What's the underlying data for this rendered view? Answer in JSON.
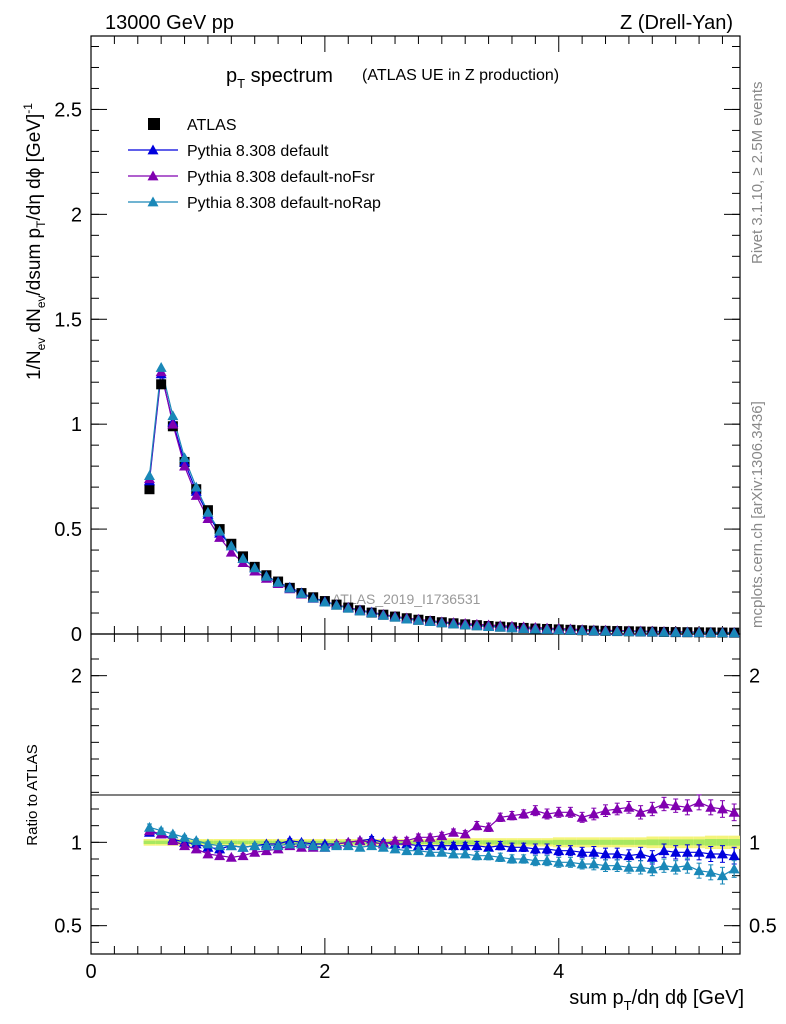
{
  "header": {
    "left": "13000 GeV pp",
    "right": "Z (Drell-Yan)"
  },
  "title": {
    "main": "p",
    "main_sub": "T",
    "main_rest": " spectrum",
    "note": "(ATLAS UE in Z production)"
  },
  "side_labels": {
    "rivet": "Rivet 3.1.10, ≥ 2.5M events",
    "mcplots": "mcplots.cern.ch [arXiv:1306.3436]"
  },
  "watermark": "ATLAS_2019_I1736531",
  "colors": {
    "atlas": "#000000",
    "default": "#0000dd",
    "noFsr": "#8000b0",
    "noRap": "#1a88b8",
    "band_outer": "#f4f47a",
    "band_inner": "#a8e860"
  },
  "chart_data": [
    {
      "type": "scatter",
      "panel": "main",
      "ylabel": "1/N_ev dN_ev/dsum p_T/dη dφ [GeV]^-1",
      "xlim": [
        0,
        5.55
      ],
      "ylim": [
        0,
        2.85
      ],
      "y_ticks": [
        "0",
        "0.5",
        "1",
        "1.5",
        "2",
        "2.5"
      ],
      "legend": {
        "placement": "top-left",
        "entries": [
          "ATLAS",
          "Pythia 8.308 default",
          "Pythia 8.308 default-noFsr",
          "Pythia 8.308 default-noRap"
        ]
      },
      "x": [
        0.5,
        0.6,
        0.7,
        0.8,
        0.9,
        1.0,
        1.1,
        1.2,
        1.3,
        1.4,
        1.5,
        1.6,
        1.7,
        1.8,
        1.9,
        2.0,
        2.1,
        2.2,
        2.3,
        2.4,
        2.5,
        2.6,
        2.7,
        2.8,
        2.9,
        3.0,
        3.1,
        3.2,
        3.3,
        3.4,
        3.5,
        3.6,
        3.7,
        3.8,
        3.9,
        4.0,
        4.1,
        4.2,
        4.3,
        4.4,
        4.5,
        4.6,
        4.7,
        4.8,
        4.9,
        5.0,
        5.1,
        5.2,
        5.3,
        5.4,
        5.5
      ],
      "series": [
        {
          "name": "ATLAS",
          "marker": "square",
          "values": [
            0.69,
            1.19,
            0.99,
            0.82,
            0.69,
            0.59,
            0.5,
            0.43,
            0.37,
            0.32,
            0.28,
            0.25,
            0.22,
            0.195,
            0.175,
            0.157,
            0.14,
            0.126,
            0.113,
            0.102,
            0.092,
            0.083,
            0.075,
            0.068,
            0.062,
            0.056,
            0.051,
            0.046,
            0.042,
            0.038,
            0.035,
            0.032,
            0.029,
            0.026,
            0.024,
            0.022,
            0.02,
            0.018,
            0.016,
            0.015,
            0.014,
            0.013,
            0.012,
            0.011,
            0.01,
            0.009,
            0.0085,
            0.008,
            0.0075,
            0.007,
            0.0065
          ]
        },
        {
          "name": "Pythia 8.308 default",
          "marker": "triangle",
          "values": [
            0.73,
            1.24,
            1.01,
            0.82,
            0.68,
            0.57,
            0.48,
            0.42,
            0.36,
            0.315,
            0.277,
            0.247,
            0.222,
            0.196,
            0.173,
            0.155,
            0.139,
            0.126,
            0.114,
            0.104,
            0.092,
            0.083,
            0.074,
            0.067,
            0.061,
            0.055,
            0.05,
            0.045,
            0.041,
            0.037,
            0.034,
            0.031,
            0.028,
            0.025,
            0.023,
            0.021,
            0.019,
            0.017,
            0.015,
            0.014,
            0.013,
            0.012,
            0.011,
            0.01,
            0.0095,
            0.0085,
            0.008,
            0.0075,
            0.007,
            0.0065,
            0.006
          ]
        },
        {
          "name": "Pythia 8.308 default-noFsr",
          "marker": "triangle",
          "values": [
            0.74,
            1.25,
            1.0,
            0.8,
            0.66,
            0.55,
            0.46,
            0.39,
            0.34,
            0.3,
            0.265,
            0.24,
            0.215,
            0.19,
            0.17,
            0.153,
            0.138,
            0.126,
            0.114,
            0.102,
            0.093,
            0.084,
            0.076,
            0.07,
            0.064,
            0.058,
            0.054,
            0.05,
            0.046,
            0.043,
            0.04,
            0.037,
            0.034,
            0.031,
            0.028,
            0.026,
            0.024,
            0.021,
            0.019,
            0.018,
            0.016,
            0.015,
            0.014,
            0.013,
            0.012,
            0.011,
            0.01,
            0.0093,
            0.0085,
            0.008,
            0.0075
          ]
        },
        {
          "name": "Pythia 8.308 default-noRap",
          "marker": "triangle",
          "values": [
            0.755,
            1.27,
            1.04,
            0.84,
            0.7,
            0.58,
            0.49,
            0.42,
            0.36,
            0.315,
            0.275,
            0.246,
            0.218,
            0.193,
            0.171,
            0.152,
            0.137,
            0.123,
            0.11,
            0.1,
            0.089,
            0.08,
            0.071,
            0.065,
            0.059,
            0.053,
            0.048,
            0.043,
            0.039,
            0.035,
            0.032,
            0.029,
            0.026,
            0.024,
            0.022,
            0.02,
            0.018,
            0.016,
            0.015,
            0.013,
            0.012,
            0.011,
            0.01,
            0.0095,
            0.0085,
            0.008,
            0.0075,
            0.007,
            0.0065,
            0.006,
            0.0055
          ]
        }
      ]
    },
    {
      "type": "scatter",
      "panel": "ratio",
      "xlabel": "sum p_T/dη dφ [GeV]",
      "ylabel": "Ratio to ATLAS",
      "xlim": [
        0,
        5.55
      ],
      "ylim": [
        0.33,
        2.25
      ],
      "x_ticks": [
        "0",
        "2",
        "4"
      ],
      "y_ticks": [
        "0.5",
        "1",
        "2"
      ],
      "x": [
        0.5,
        0.6,
        0.7,
        0.8,
        0.9,
        1.0,
        1.1,
        1.2,
        1.3,
        1.4,
        1.5,
        1.6,
        1.7,
        1.8,
        1.9,
        2.0,
        2.1,
        2.2,
        2.3,
        2.4,
        2.5,
        2.6,
        2.7,
        2.8,
        2.9,
        3.0,
        3.1,
        3.2,
        3.3,
        3.4,
        3.5,
        3.6,
        3.7,
        3.8,
        3.9,
        4.0,
        4.1,
        4.2,
        4.3,
        4.4,
        4.5,
        4.6,
        4.7,
        4.8,
        4.9,
        5.0,
        5.1,
        5.2,
        5.3,
        5.4,
        5.5
      ],
      "band_half_width": [
        0.02,
        0.02,
        0.02,
        0.02,
        0.02,
        0.02,
        0.02,
        0.02,
        0.02,
        0.02,
        0.02,
        0.02,
        0.02,
        0.02,
        0.02,
        0.02,
        0.02,
        0.02,
        0.02,
        0.02,
        0.02,
        0.02,
        0.02,
        0.02,
        0.02,
        0.025,
        0.025,
        0.025,
        0.025,
        0.025,
        0.025,
        0.025,
        0.025,
        0.025,
        0.025,
        0.03,
        0.03,
        0.03,
        0.03,
        0.03,
        0.03,
        0.03,
        0.03,
        0.035,
        0.035,
        0.035,
        0.035,
        0.035,
        0.04,
        0.04,
        0.04
      ],
      "series": [
        {
          "name": "Pythia 8.308 default",
          "values": [
            1.06,
            1.05,
            1.02,
            1.0,
            0.99,
            0.97,
            0.96,
            0.98,
            0.97,
            0.98,
            0.99,
            0.99,
            1.01,
            1.0,
            0.99,
            0.99,
            0.99,
            1.0,
            1.01,
            1.02,
            1.0,
            0.99,
            0.99,
            0.98,
            0.98,
            0.98,
            0.98,
            0.98,
            0.98,
            0.97,
            0.98,
            0.97,
            0.97,
            0.96,
            0.96,
            0.95,
            0.95,
            0.94,
            0.94,
            0.93,
            0.93,
            0.92,
            0.93,
            0.91,
            0.95,
            0.94,
            0.94,
            0.94,
            0.93,
            0.93,
            0.92
          ],
          "errors": [
            0.02,
            0.015,
            0.012,
            0.012,
            0.012,
            0.012,
            0.012,
            0.012,
            0.012,
            0.012,
            0.012,
            0.012,
            0.012,
            0.012,
            0.012,
            0.012,
            0.015,
            0.015,
            0.015,
            0.015,
            0.015,
            0.02,
            0.02,
            0.02,
            0.02,
            0.02,
            0.02,
            0.02,
            0.025,
            0.025,
            0.025,
            0.025,
            0.025,
            0.03,
            0.03,
            0.03,
            0.03,
            0.03,
            0.035,
            0.035,
            0.035,
            0.035,
            0.04,
            0.04,
            0.04,
            0.04,
            0.045,
            0.045,
            0.045,
            0.05,
            0.05
          ]
        },
        {
          "name": "Pythia 8.308 default-noFsr",
          "values": [
            1.07,
            1.05,
            1.01,
            0.98,
            0.96,
            0.93,
            0.92,
            0.91,
            0.92,
            0.94,
            0.95,
            0.96,
            0.98,
            0.97,
            0.97,
            0.97,
            0.99,
            1.0,
            1.01,
            1.0,
            0.99,
            1.01,
            1.01,
            1.03,
            1.03,
            1.04,
            1.06,
            1.05,
            1.1,
            1.09,
            1.15,
            1.16,
            1.17,
            1.19,
            1.17,
            1.18,
            1.18,
            1.15,
            1.17,
            1.19,
            1.2,
            1.21,
            1.18,
            1.2,
            1.23,
            1.22,
            1.21,
            1.24,
            1.21,
            1.2,
            1.18
          ],
          "errors": [
            0.02,
            0.015,
            0.012,
            0.012,
            0.012,
            0.012,
            0.012,
            0.012,
            0.012,
            0.012,
            0.012,
            0.012,
            0.012,
            0.012,
            0.012,
            0.012,
            0.015,
            0.015,
            0.015,
            0.015,
            0.015,
            0.02,
            0.02,
            0.02,
            0.02,
            0.02,
            0.02,
            0.02,
            0.025,
            0.025,
            0.025,
            0.025,
            0.025,
            0.03,
            0.03,
            0.03,
            0.03,
            0.03,
            0.035,
            0.035,
            0.035,
            0.035,
            0.04,
            0.04,
            0.04,
            0.04,
            0.045,
            0.045,
            0.045,
            0.05,
            0.05
          ]
        },
        {
          "name": "Pythia 8.308 default-noRap",
          "values": [
            1.09,
            1.07,
            1.05,
            1.03,
            1.01,
            0.99,
            0.98,
            0.98,
            0.97,
            0.98,
            0.98,
            0.98,
            0.99,
            0.99,
            0.98,
            0.97,
            0.98,
            0.98,
            0.97,
            0.98,
            0.97,
            0.96,
            0.95,
            0.95,
            0.94,
            0.94,
            0.93,
            0.93,
            0.92,
            0.92,
            0.91,
            0.9,
            0.9,
            0.89,
            0.89,
            0.88,
            0.88,
            0.87,
            0.87,
            0.86,
            0.86,
            0.85,
            0.85,
            0.84,
            0.86,
            0.85,
            0.86,
            0.83,
            0.82,
            0.8,
            0.84
          ],
          "errors": [
            0.02,
            0.015,
            0.012,
            0.012,
            0.012,
            0.012,
            0.012,
            0.012,
            0.012,
            0.012,
            0.012,
            0.012,
            0.012,
            0.012,
            0.012,
            0.012,
            0.015,
            0.015,
            0.015,
            0.015,
            0.015,
            0.02,
            0.02,
            0.02,
            0.02,
            0.02,
            0.02,
            0.02,
            0.025,
            0.025,
            0.025,
            0.025,
            0.025,
            0.03,
            0.03,
            0.03,
            0.03,
            0.03,
            0.035,
            0.035,
            0.035,
            0.035,
            0.04,
            0.04,
            0.04,
            0.04,
            0.045,
            0.045,
            0.045,
            0.05,
            0.05
          ]
        }
      ]
    }
  ]
}
